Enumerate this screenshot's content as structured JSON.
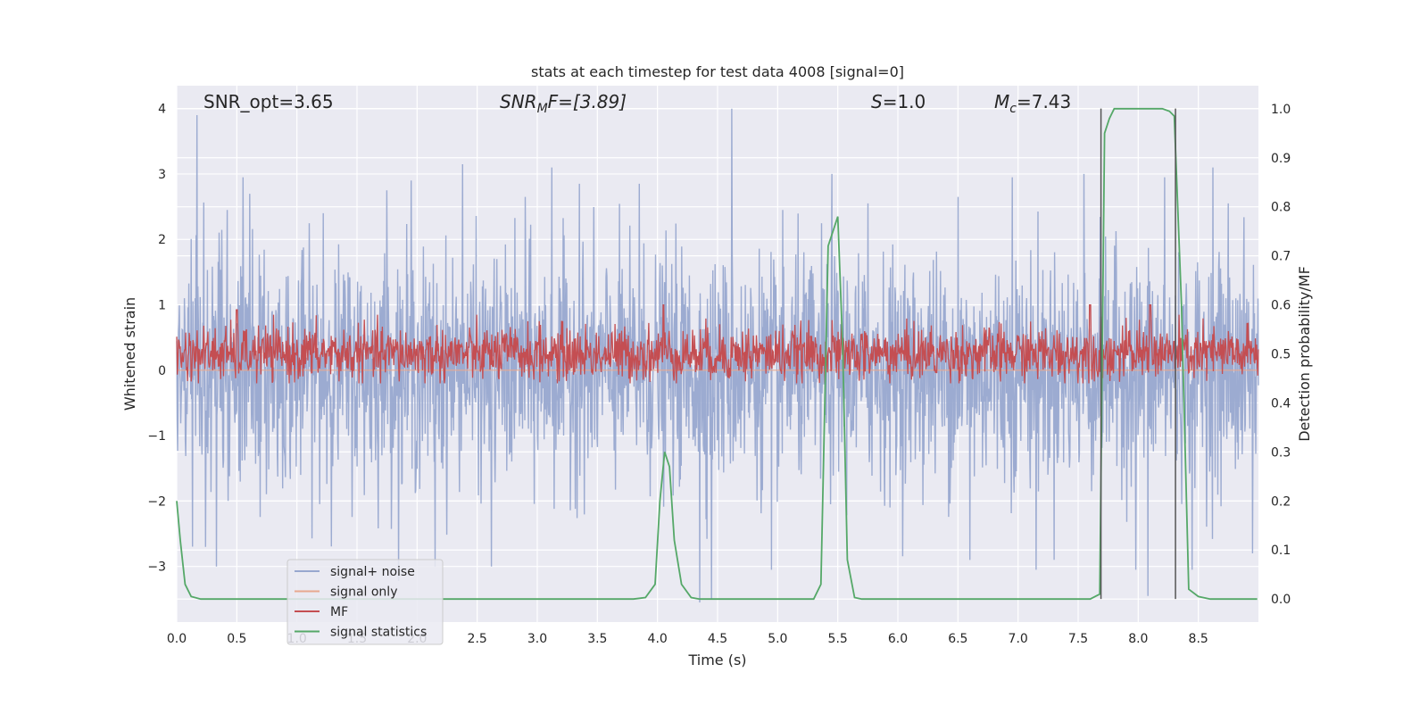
{
  "chart_data": {
    "type": "line",
    "title": "stats at each timestep for test data 4008 [signal=0]",
    "xlabel": "Time (s)",
    "ylabel": "Whitened strain",
    "ylabel_right": "Detection probability/MF",
    "xlim": [
      0,
      9.0
    ],
    "ylim": [
      -3.85,
      4.35
    ],
    "ylim_right": [
      -0.047,
      1.047
    ],
    "x_ticks": [
      "0.0",
      "0.5",
      "1.0",
      "1.5",
      "2.0",
      "2.5",
      "3.0",
      "3.5",
      "4.0",
      "4.5",
      "5.0",
      "5.5",
      "6.0",
      "6.5",
      "7.0",
      "7.5",
      "8.0",
      "8.5"
    ],
    "y_ticks": [
      "4",
      "3",
      "2",
      "1",
      "0",
      "−1",
      "−2",
      "−3"
    ],
    "y_ticks_right": [
      "1.0",
      "0.9",
      "0.8",
      "0.7",
      "0.6",
      "0.5",
      "0.4",
      "0.3",
      "0.2",
      "0.1",
      "0.0"
    ],
    "grid": true,
    "legend_position": "lower-left",
    "annotations": {
      "snr_opt": "SNR_opt=3.65",
      "snr_mf_main": "SNR",
      "snr_mf_sub": "M",
      "snr_mf_after": "F=[3.89]",
      "s_main": "S",
      "s_value": "=1.0",
      "mc_main": "M",
      "mc_sub": "c",
      "mc_value": "=7.43"
    },
    "vertical_lines_x": [
      7.69,
      8.31
    ],
    "series": [
      {
        "name": "signal+ noise",
        "color": "#98a8cf",
        "axis": "left",
        "description_envelope": {
          "typical_upper": 1.8,
          "typical_lower": -1.8,
          "max": 4.0,
          "min": -3.6
        },
        "spikes": [
          [
            0.17,
            3.9
          ],
          [
            0.24,
            -2.7
          ],
          [
            0.33,
            -3.0
          ],
          [
            0.42,
            2.45
          ],
          [
            0.55,
            2.95
          ],
          [
            1.22,
            2.4
          ],
          [
            1.75,
            2.75
          ],
          [
            1.95,
            2.9
          ],
          [
            2.15,
            -3.0
          ],
          [
            2.38,
            3.15
          ],
          [
            2.62,
            -3.0
          ],
          [
            2.9,
            2.65
          ],
          [
            3.12,
            3.1
          ],
          [
            3.35,
            2.85
          ],
          [
            3.85,
            2.85
          ],
          [
            4.35,
            -3.55
          ],
          [
            4.45,
            -3.5
          ],
          [
            4.62,
            4.0
          ],
          [
            4.95,
            -3.05
          ],
          [
            5.45,
            3.0
          ],
          [
            5.75,
            2.55
          ],
          [
            6.5,
            2.65
          ],
          [
            6.6,
            -2.9
          ],
          [
            6.95,
            2.95
          ],
          [
            7.15,
            -3.05
          ],
          [
            7.55,
            3.0
          ],
          [
            7.98,
            -3.05
          ],
          [
            8.08,
            -3.45
          ],
          [
            8.22,
            2.95
          ],
          [
            8.45,
            -3.05
          ],
          [
            8.62,
            3.1
          ],
          [
            8.75,
            2.55
          ],
          [
            8.95,
            -2.8
          ]
        ]
      },
      {
        "name": "signal only",
        "color": "#e8a88f",
        "axis": "left",
        "constant": 0.0
      },
      {
        "name": "MF",
        "color": "#c44e52",
        "axis": "right",
        "baseline": 0.5,
        "typical_upper": 0.58,
        "typical_lower": 0.45,
        "peaks": [
          [
            4.05,
            0.6
          ],
          [
            7.6,
            0.6
          ],
          [
            8.1,
            0.6
          ],
          [
            0.5,
            0.59
          ]
        ]
      },
      {
        "name": "signal statistics",
        "color": "#55a868",
        "axis": "right",
        "x": [
          0.0,
          0.03,
          0.07,
          0.12,
          0.2,
          0.3,
          0.5,
          0.8,
          1.0,
          2.0,
          3.0,
          3.8,
          3.9,
          3.98,
          4.02,
          4.06,
          4.1,
          4.14,
          4.2,
          4.28,
          4.35,
          4.5,
          5.0,
          5.3,
          5.36,
          5.42,
          5.5,
          5.54,
          5.58,
          5.64,
          5.7,
          6.0,
          7.0,
          7.6,
          7.68,
          7.72,
          7.76,
          7.8,
          8.0,
          8.2,
          8.26,
          8.3,
          8.36,
          8.42,
          8.5,
          8.6,
          8.8,
          8.99
        ],
        "y": [
          0.2,
          0.12,
          0.03,
          0.005,
          0.0,
          0.0,
          0.0,
          0.0,
          0.0,
          0.0,
          0.0,
          0.0,
          0.003,
          0.03,
          0.2,
          0.3,
          0.27,
          0.12,
          0.03,
          0.003,
          0.0,
          0.0,
          0.0,
          0.0,
          0.03,
          0.72,
          0.78,
          0.52,
          0.08,
          0.003,
          0.0,
          0.0,
          0.0,
          0.0,
          0.01,
          0.95,
          0.98,
          1.0,
          1.0,
          1.0,
          0.995,
          0.985,
          0.6,
          0.02,
          0.005,
          0.0,
          0.0,
          0.0
        ]
      }
    ]
  }
}
